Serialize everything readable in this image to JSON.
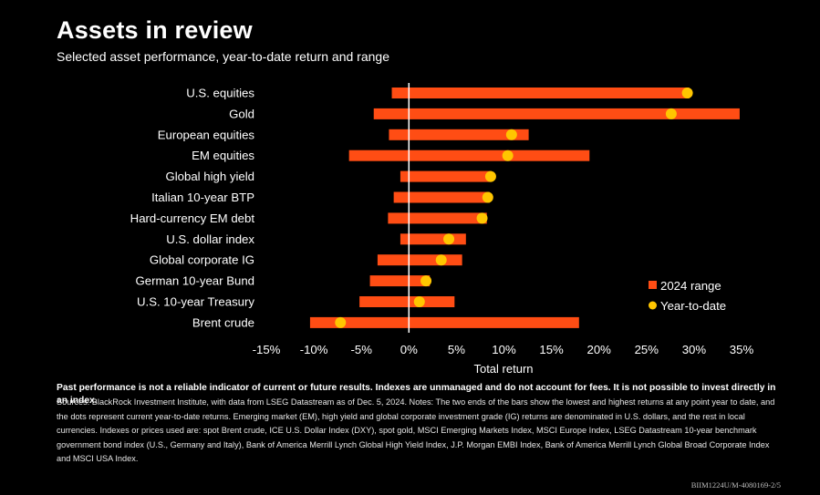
{
  "header": {
    "title": "Assets in review",
    "subtitle": "Selected asset performance, year-to-date return and range"
  },
  "chart_data": {
    "type": "bar",
    "orientation": "horizontal-range",
    "title": "Assets in review",
    "xlabel": "Total return",
    "ylabel": "",
    "xlim": [
      -15,
      35
    ],
    "x_ticks": [
      -15,
      -10,
      -5,
      0,
      5,
      10,
      15,
      20,
      25,
      30,
      35
    ],
    "x_tick_labels": [
      "-15%",
      "-10%",
      "-5%",
      "0%",
      "5%",
      "10%",
      "15%",
      "20%",
      "25%",
      "30%",
      "35%"
    ],
    "grid": false,
    "legend_position": "bottom-right",
    "legend": [
      {
        "name": "2024 range",
        "color": "#ff4d14",
        "shape": "square"
      },
      {
        "name": "Year-to-date",
        "color": "#ffc600",
        "shape": "circle"
      }
    ],
    "categories": [
      "U.S. equities",
      "Gold",
      "European equities",
      "EM equities",
      "Global high yield",
      "Italian 10-year BTP",
      "Hard-currency EM debt",
      "U.S. dollar index",
      "Global corporate IG",
      "German 10-year Bund",
      "U.S. 10-year Treasury",
      "Brent crude"
    ],
    "series": [
      {
        "name": "2024 range low",
        "values": [
          -1.8,
          -3.7,
          -2.1,
          -6.3,
          -0.9,
          -1.6,
          -2.2,
          -0.9,
          -3.3,
          -4.1,
          -5.2,
          -10.4
        ]
      },
      {
        "name": "2024 range high",
        "values": [
          29.5,
          34.8,
          12.6,
          19.0,
          8.7,
          8.5,
          8.2,
          6.0,
          5.6,
          2.2,
          4.8,
          17.9
        ]
      },
      {
        "name": "Year-to-date",
        "values": [
          29.3,
          27.6,
          10.8,
          10.4,
          8.6,
          8.3,
          7.7,
          4.2,
          3.4,
          1.8,
          1.1,
          -7.2
        ]
      }
    ],
    "colors": {
      "range": "#ff4d14",
      "ytd": "#ffc600",
      "zero_line": "#ffffff"
    }
  },
  "footer": {
    "disclaimer": "Past performance is not a reliable indicator of current or future results. Indexes are unmanaged and do not account for fees. It is not possible to invest directly in an index.",
    "notes": "Sources: BlackRock Investment Institute, with data from LSEG Datastream as of Dec. 5, 2024. Notes: The two ends of the bars show the lowest and highest returns at any point year to date, and the dots represent current year-to-date returns. Emerging market (EM), high yield and global corporate investment grade (IG) returns are denominated in U.S. dollars, and the rest in local currencies. Indexes or prices used are: spot Brent crude, ICE U.S. Dollar Index (DXY), spot gold, MSCI Emerging Markets Index, MSCI Europe Index, LSEG Datastream 10-year benchmark government bond index (U.S., Germany and Italy), Bank of America Merrill Lynch Global High Yield Index, J.P. Morgan EMBI Index, Bank of America Merrill Lynch Global Broad Corporate Index and MSCI USA Index.",
    "code": "BIIM1224U/M-4080169-2/5"
  }
}
